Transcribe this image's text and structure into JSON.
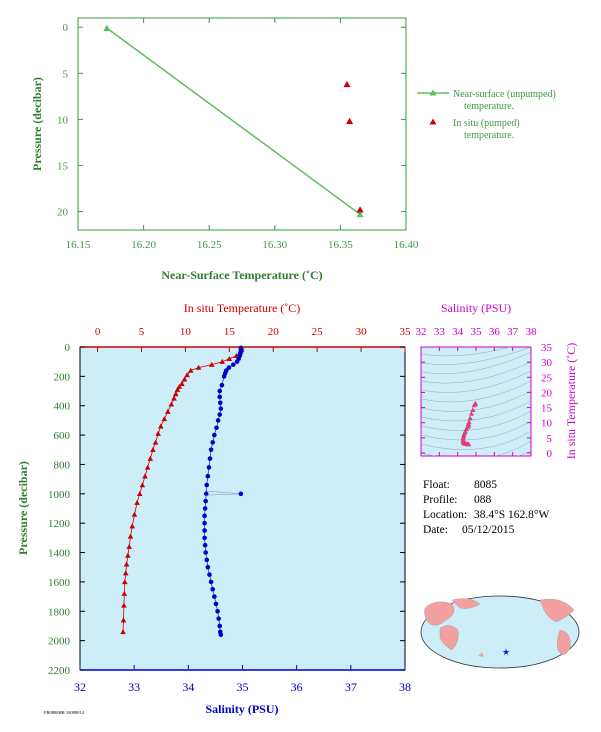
{
  "colors": {
    "green": "#3f9a3f",
    "line_green": "#5cbf5c",
    "axis_label_green": "#2f7d2f",
    "red": "#cc0000",
    "blue": "#0000cc",
    "magenta": "#cc00cc",
    "pink": "#e0407a",
    "panel_bg": "#cdeef8",
    "land": "#f2a0a0",
    "ocean": "#cdeef8"
  },
  "info": {
    "float_label": "Float:",
    "float_value": "8085",
    "profile_label": "Profile:",
    "profile_value": "088",
    "location_label": "Location:",
    "location_value": "38.4°S  162.8°W",
    "date_label": "Date:",
    "date_value": "05/12/2015"
  },
  "chart_data": [
    {
      "id": "near_surface",
      "type": "line",
      "xlabel": "Near-Surface Temperature (˚C)",
      "ylabel": "Pressure (decibar)",
      "xlim": [
        16.15,
        16.4
      ],
      "ylim": [
        22,
        -1
      ],
      "xticks": [
        "16.15",
        "16.20",
        "16.25",
        "16.30",
        "16.35",
        "16.40"
      ],
      "yticks": [
        "0",
        "5",
        "10",
        "15",
        "20"
      ],
      "legend_position": "right",
      "series": [
        {
          "name": "Near-surface (unpumped) temperature.",
          "legend_lines": [
            "Near-surface (unpumped)",
            "temperature."
          ],
          "x": [
            16.172,
            16.365
          ],
          "y": [
            0.1,
            20.3
          ]
        },
        {
          "name": "In situ (pumped) temperature.",
          "legend_lines": [
            "In situ (pumped)",
            "temperature."
          ],
          "x": [
            16.355,
            16.357,
            16.365
          ],
          "y": [
            6.2,
            10.2,
            19.8
          ]
        }
      ]
    },
    {
      "id": "profile",
      "type": "scatter",
      "ylabel": "Pressure (decibar)",
      "ylim": [
        2200,
        0
      ],
      "yticks": [
        "0",
        "200",
        "400",
        "600",
        "800",
        "1000",
        "1200",
        "1400",
        "1600",
        "1800",
        "2000",
        "2200"
      ],
      "top_axis": {
        "label": "In situ Temperature (˚C)",
        "lim": [
          -2,
          35
        ],
        "ticks": [
          "0",
          "5",
          "10",
          "15",
          "20",
          "25",
          "30",
          "35"
        ]
      },
      "bottom_axis": {
        "label": "Salinity (PSU)",
        "lim": [
          32,
          38
        ],
        "ticks": [
          "32",
          "33",
          "34",
          "35",
          "36",
          "37",
          "38"
        ]
      },
      "series": [
        {
          "name": "temperature",
          "x": [
            16.4,
            16.4,
            16.3,
            16.2,
            16.1,
            15.8,
            15.0,
            14.2,
            13.0,
            11.5,
            10.6,
            10.2,
            9.9,
            9.6,
            9.3,
            9.1,
            8.9,
            8.7,
            8.4,
            8.0,
            7.6,
            7.2,
            6.9,
            6.6,
            6.3,
            6.0,
            5.7,
            5.4,
            5.1,
            4.8,
            4.5,
            4.2,
            3.95,
            3.75,
            3.6,
            3.45,
            3.3,
            3.2,
            3.1,
            3.05,
            3.0,
            2.95,
            2.9
          ],
          "y": [
            6,
            20,
            30,
            40,
            50,
            60,
            80,
            100,
            120,
            140,
            160,
            190,
            220,
            250,
            270,
            290,
            320,
            350,
            390,
            440,
            490,
            540,
            590,
            650,
            700,
            760,
            820,
            880,
            940,
            1000,
            1060,
            1140,
            1220,
            1290,
            1360,
            1420,
            1480,
            1540,
            1600,
            1680,
            1760,
            1860,
            1940
          ]
        },
        {
          "name": "salinity",
          "x": [
            34.97,
            34.97,
            34.96,
            34.95,
            34.93,
            34.9,
            34.83,
            34.75,
            34.7,
            34.68,
            34.66,
            34.62,
            34.58,
            34.58,
            34.59,
            34.6,
            34.58,
            34.55,
            34.52,
            34.48,
            34.45,
            34.42,
            34.4,
            34.38,
            34.36,
            34.34,
            34.33,
            34.32,
            34.31,
            34.3,
            34.3,
            34.3,
            34.3,
            34.31,
            34.32,
            34.34,
            34.36,
            34.39,
            34.42,
            34.45,
            34.48,
            34.51,
            34.54,
            34.56,
            34.58,
            34.59,
            34.6
          ],
          "y": [
            6,
            20,
            40,
            60,
            80,
            100,
            120,
            140,
            160,
            180,
            200,
            260,
            300,
            340,
            380,
            420,
            460,
            500,
            550,
            600,
            650,
            700,
            760,
            820,
            880,
            940,
            1000,
            1050,
            1100,
            1150,
            1200,
            1250,
            1300,
            1350,
            1400,
            1450,
            1500,
            1550,
            1600,
            1650,
            1700,
            1750,
            1800,
            1850,
            1900,
            1940,
            1960
          ]
        },
        {
          "name": "salinity_outlier",
          "x": [
            34.97
          ],
          "y": [
            1000
          ],
          "from": [
            34.3,
            980
          ]
        }
      ]
    },
    {
      "id": "ts_diagram",
      "type": "scatter",
      "xlabel": "Salinity (PSU)",
      "ylabel": "In situ Temperature (˚C)",
      "xlim": [
        32,
        38
      ],
      "ylim": [
        -1,
        35
      ],
      "xticks": [
        "32",
        "33",
        "34",
        "35",
        "36",
        "37",
        "38"
      ],
      "yticks": [
        "0",
        "5",
        "10",
        "15",
        "20",
        "25",
        "30",
        "35"
      ],
      "series": [
        {
          "name": "ts",
          "x": [
            34.97,
            34.95,
            34.9,
            34.83,
            34.75,
            34.68,
            34.62,
            34.58,
            34.6,
            34.55,
            34.48,
            34.42,
            34.38,
            34.34,
            34.32,
            34.3,
            34.3,
            34.3,
            34.32,
            34.36,
            34.42,
            34.48,
            34.54,
            34.58,
            34.6
          ],
          "y": [
            16.4,
            16.2,
            15.8,
            14.2,
            13.0,
            11.5,
            10.2,
            9.6,
            9.1,
            8.7,
            8.0,
            7.2,
            6.6,
            6.0,
            5.4,
            4.8,
            4.2,
            3.75,
            3.45,
            3.2,
            3.05,
            3.0,
            2.95,
            2.9,
            2.9
          ]
        }
      ]
    }
  ],
  "map": {
    "float_marker": "star-icon"
  },
  "footer_text": "FR0888HR 10088014"
}
